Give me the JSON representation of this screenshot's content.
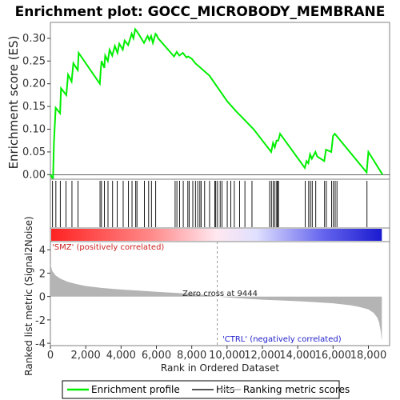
{
  "chart_data": {
    "type": "line",
    "title": "Enrichment plot: GOCC_MICROBODY_MEMBRANE",
    "es_panel": {
      "ylabel": "Enrichment score (ES)",
      "ylim": [
        -0.01,
        0.335
      ],
      "yticks": [
        0.0,
        0.05,
        0.1,
        0.15,
        0.2,
        0.25,
        0.3
      ],
      "ytick_labels": [
        "0.00",
        "0.05",
        "0.10",
        "0.15",
        "0.20",
        "0.25",
        "0.30"
      ],
      "series_name": "Enrichment profile",
      "color": "#00ee00",
      "x": [
        0,
        150,
        200,
        300,
        550,
        600,
        900,
        1000,
        1200,
        1300,
        1550,
        1600,
        2800,
        2850,
        2900,
        3050,
        3100,
        3250,
        3350,
        3500,
        3650,
        3800,
        3900,
        4100,
        4200,
        4400,
        4600,
        4700,
        4800,
        4900,
        5050,
        5300,
        5500,
        5600,
        5700,
        5800,
        5950,
        6000,
        6100,
        7000,
        7150,
        7300,
        7500,
        7700,
        7800,
        8000,
        8200,
        8500,
        9000,
        9500,
        10000,
        10500,
        11000,
        11500,
        12000,
        12500,
        12600,
        12700,
        12800,
        12900,
        13000,
        14400,
        14500,
        14600,
        14700,
        14800,
        15000,
        15100,
        15500,
        15600,
        15900,
        16000,
        16100,
        16200,
        17900,
        18000,
        18800
      ],
      "y": [
        0.0,
        -0.01,
        0.07,
        0.147,
        0.135,
        0.19,
        0.175,
        0.22,
        0.205,
        0.245,
        0.23,
        0.268,
        0.2,
        0.23,
        0.25,
        0.235,
        0.262,
        0.25,
        0.275,
        0.262,
        0.283,
        0.268,
        0.288,
        0.275,
        0.295,
        0.285,
        0.31,
        0.3,
        0.32,
        0.315,
        0.306,
        0.29,
        0.305,
        0.296,
        0.305,
        0.29,
        0.31,
        0.308,
        0.3,
        0.26,
        0.27,
        0.262,
        0.268,
        0.258,
        0.26,
        0.255,
        0.245,
        0.235,
        0.218,
        0.19,
        0.162,
        0.14,
        0.12,
        0.1,
        0.075,
        0.05,
        0.07,
        0.06,
        0.075,
        0.075,
        0.09,
        0.015,
        0.03,
        0.025,
        0.045,
        0.035,
        0.05,
        0.04,
        0.03,
        0.055,
        0.05,
        0.085,
        0.09,
        0.085,
        0.005,
        0.05,
        0.0
      ]
    },
    "hits": [
      120,
      310,
      560,
      880,
      1220,
      1560,
      2810,
      2890,
      3060,
      3260,
      3520,
      3780,
      4120,
      4420,
      4620,
      4830,
      4900,
      5320,
      5560,
      5720,
      5960,
      7060,
      7160,
      7310,
      7520,
      7780,
      7860,
      8060,
      8210,
      8340,
      8460,
      8530,
      8730,
      9010,
      9310,
      9360,
      9460,
      9610,
      9710,
      10010,
      10210,
      10410,
      10710,
      11010,
      11410,
      12410,
      12510,
      12610,
      12710,
      12810,
      12860,
      12910,
      14420,
      14620,
      14720,
      14820,
      15020,
      15520,
      15620,
      15920,
      16020,
      16120,
      16220,
      17920
    ],
    "rank_panel": {
      "ylabel": "Ranked list metric (Signal2Noise)",
      "ylim": [
        -4.2,
        4.7
      ],
      "yticks": [
        -4,
        -2,
        0,
        2,
        4
      ],
      "ytick_labels": [
        "-4",
        "-2",
        "0",
        "2",
        "4"
      ],
      "x": [
        0,
        20,
        100,
        300,
        600,
        1000,
        1500,
        2000,
        3000,
        4000,
        5000,
        6000,
        7000,
        8000,
        9000,
        9444,
        10000,
        11000,
        12000,
        13000,
        14000,
        15000,
        16000,
        17000,
        17500,
        18000,
        18300,
        18500,
        18600,
        18700,
        18760
      ],
      "y": [
        2.9,
        2.7,
        2.2,
        1.8,
        1.5,
        1.25,
        1.05,
        0.9,
        0.72,
        0.6,
        0.5,
        0.4,
        0.32,
        0.22,
        0.1,
        0.0,
        -0.08,
        -0.18,
        -0.27,
        -0.33,
        -0.4,
        -0.48,
        -0.58,
        -0.75,
        -0.9,
        -1.1,
        -1.4,
        -1.8,
        -2.2,
        -3.0,
        -3.8
      ],
      "pos_label": "'SMZ' (positively correlated)",
      "neg_label": "'CTRL' (negatively correlated)",
      "zero_cross_label": "Zero cross at 9444",
      "zero_cross": 9444
    },
    "x_axis": {
      "xlabel": "Rank in Ordered Dataset",
      "xlim": [
        0,
        19200
      ],
      "xticks": [
        0,
        2000,
        4000,
        6000,
        8000,
        10000,
        12000,
        14000,
        16000,
        18000
      ],
      "xtick_labels": [
        "0",
        "2,000",
        "4,000",
        "6,000",
        "8,000",
        "10,000",
        "12,000",
        "14,000",
        "16,000",
        "18,000"
      ],
      "max_rank": 18760
    },
    "legend": {
      "placement": "bottom",
      "items": [
        {
          "label": "Enrichment profile",
          "color": "#00ee00"
        },
        {
          "label": "Hits",
          "color": "#000000"
        },
        {
          "label": "Ranking metric scores",
          "color": "#c0c0c0"
        }
      ]
    },
    "colors": {
      "profile": "#00ee00",
      "hits": "#000000",
      "metric": "#b4b4b4",
      "positive": "#ff2222",
      "negative": "#2222dd"
    }
  }
}
